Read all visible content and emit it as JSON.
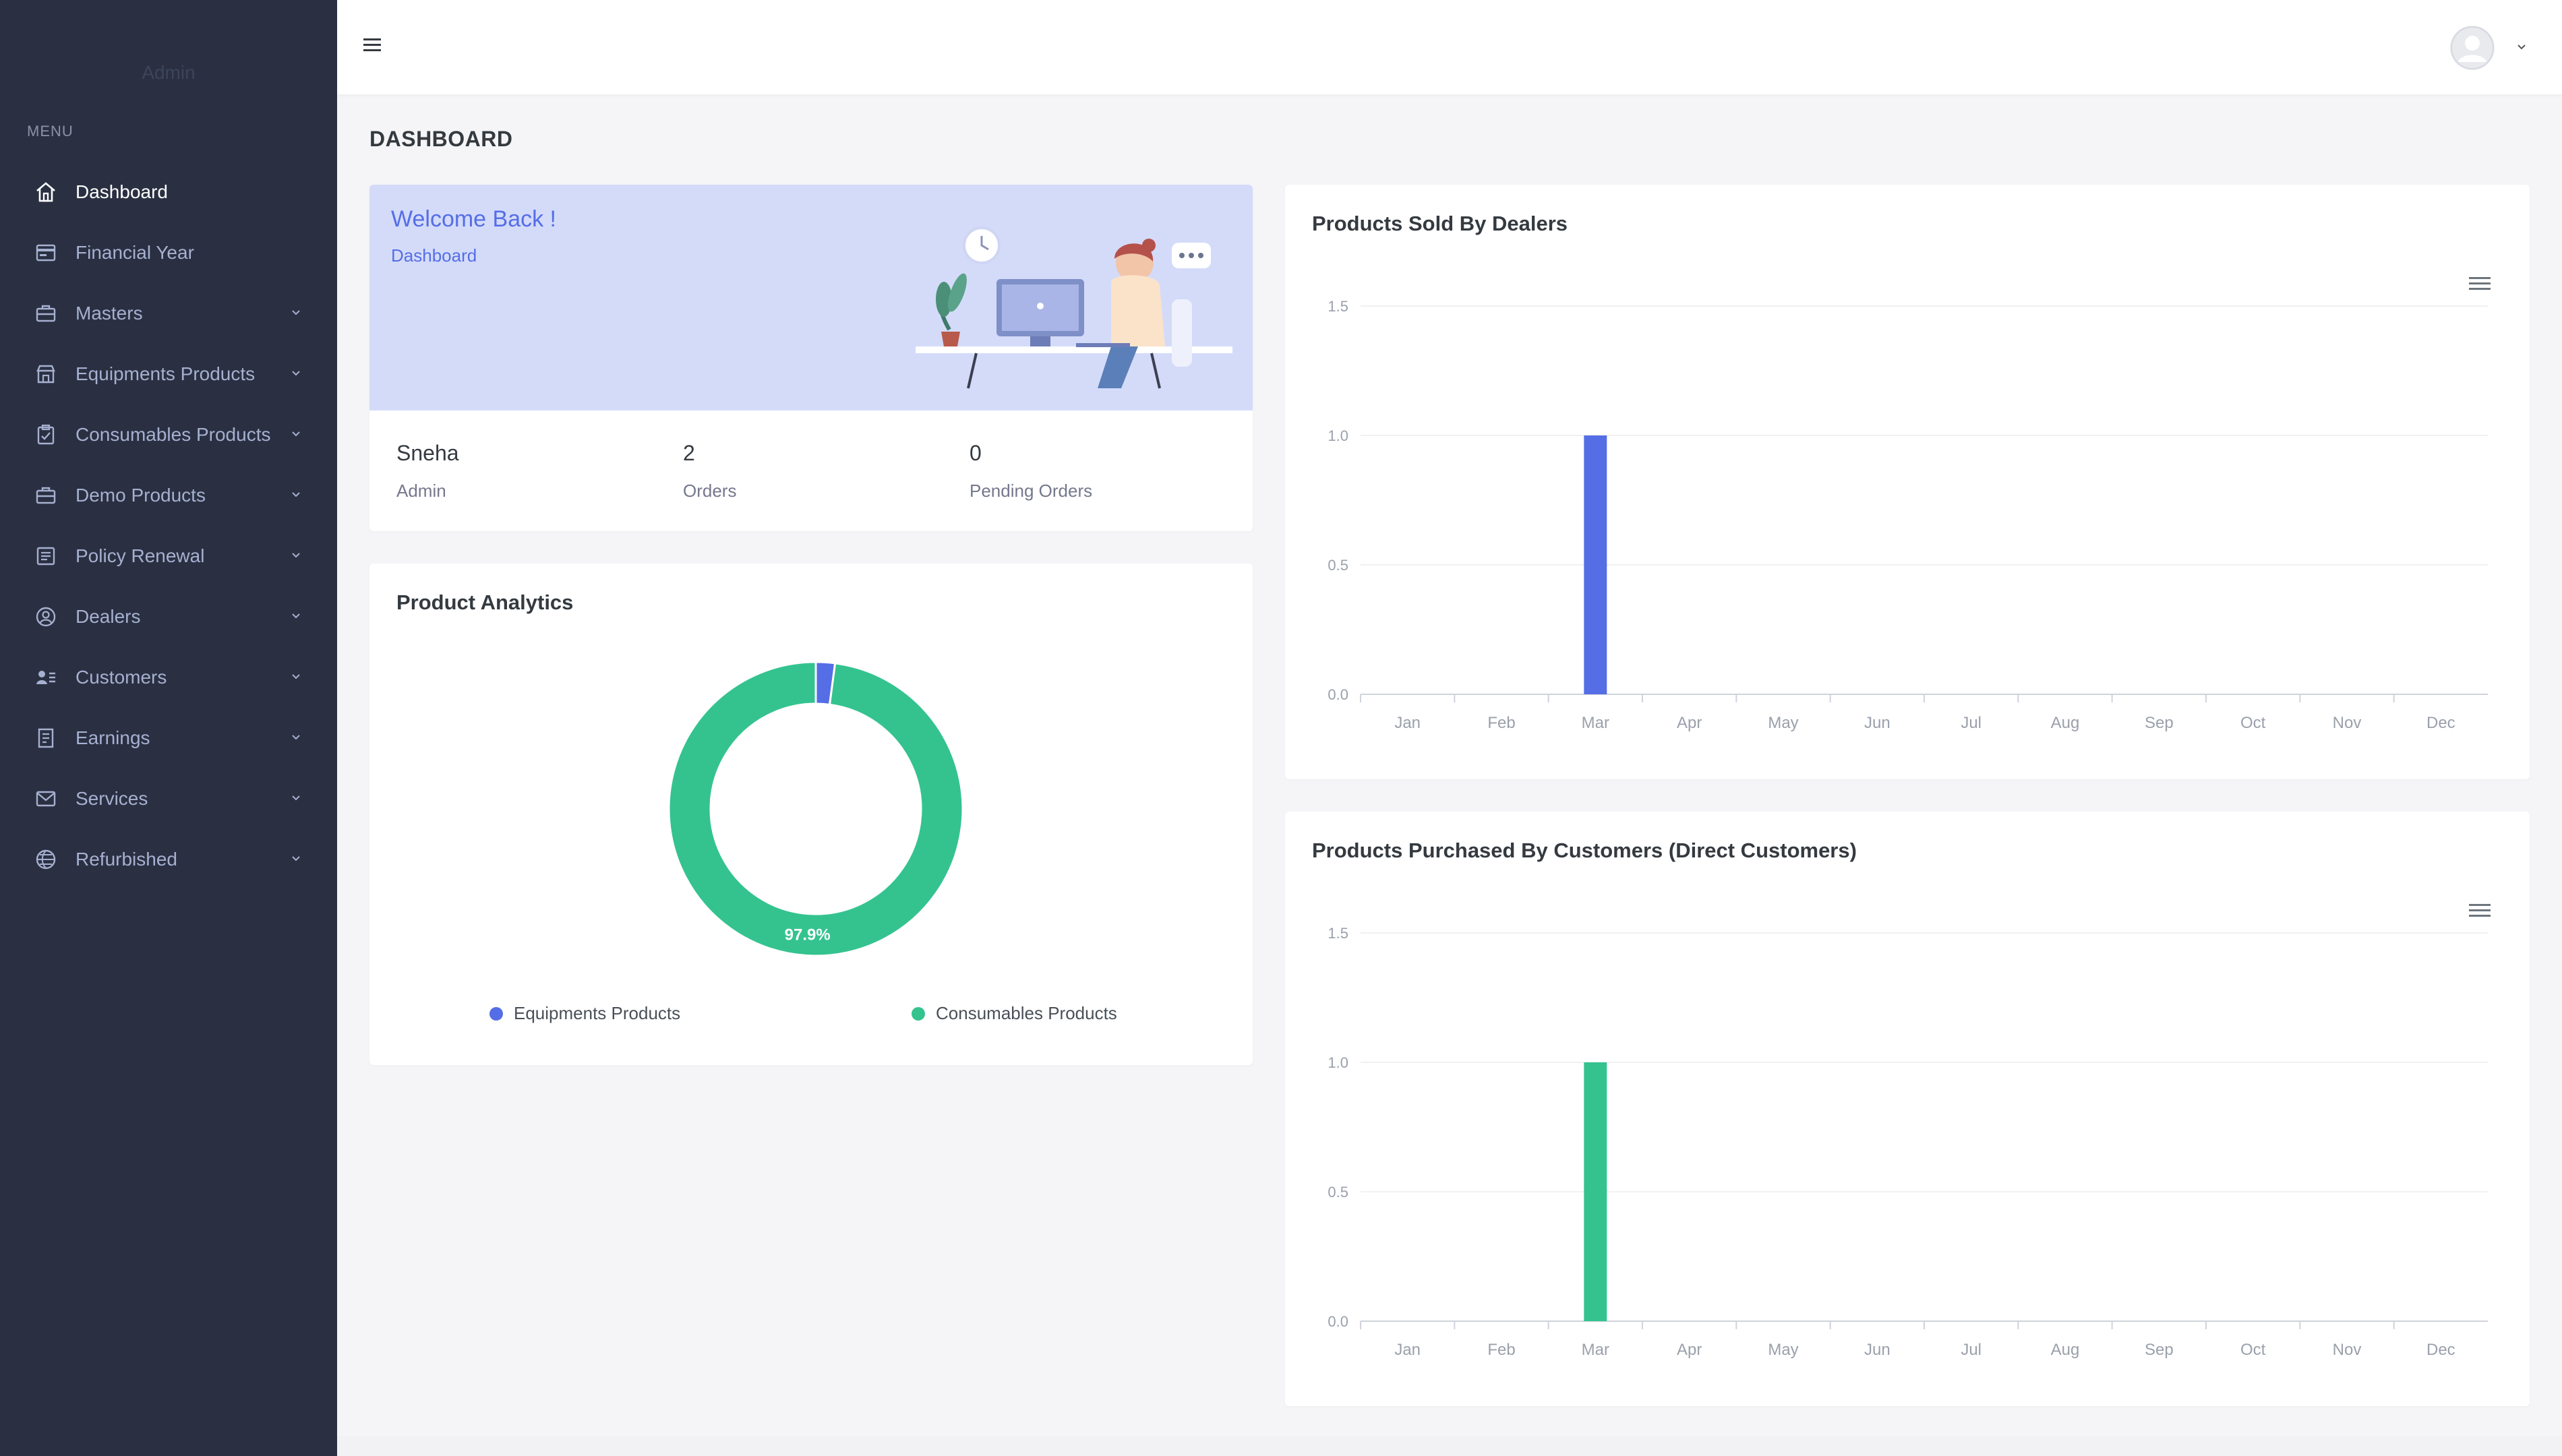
{
  "sidebar": {
    "brand": "Admin",
    "menu_title": "MENU",
    "items": [
      {
        "label": "Dashboard",
        "icon": "home-icon",
        "active": true,
        "expandable": false
      },
      {
        "label": "Financial Year",
        "icon": "calendar-card-icon",
        "active": false,
        "expandable": false
      },
      {
        "label": "Masters",
        "icon": "briefcase-icon",
        "active": false,
        "expandable": true
      },
      {
        "label": "Equipments Products",
        "icon": "store-icon",
        "active": false,
        "expandable": true
      },
      {
        "label": "Consumables Products",
        "icon": "clipboard-check-icon",
        "active": false,
        "expandable": true
      },
      {
        "label": "Demo Products",
        "icon": "briefcase-icon",
        "active": false,
        "expandable": true
      },
      {
        "label": "Policy Renewal",
        "icon": "document-icon",
        "active": false,
        "expandable": true
      },
      {
        "label": "Dealers",
        "icon": "user-circle-icon",
        "active": false,
        "expandable": true
      },
      {
        "label": "Customers",
        "icon": "user-list-icon",
        "active": false,
        "expandable": true
      },
      {
        "label": "Earnings",
        "icon": "receipt-icon",
        "active": false,
        "expandable": true
      },
      {
        "label": "Services",
        "icon": "mail-icon",
        "active": false,
        "expandable": true
      },
      {
        "label": "Refurbished",
        "icon": "globe-icon",
        "active": false,
        "expandable": true
      }
    ]
  },
  "header": {
    "page_title": "DASHBOARD"
  },
  "welcome": {
    "title": "Welcome Back !",
    "subtitle": "Dashboard",
    "name": "Sneha",
    "role": "Admin",
    "orders_value": "2",
    "orders_label": "Orders",
    "pending_value": "0",
    "pending_label": "Pending Orders"
  },
  "analytics": {
    "title": "Product Analytics",
    "legend": [
      {
        "label": "Equipments Products",
        "color": "#556ee6"
      },
      {
        "label": "Consumables Products",
        "color": "#34c38f"
      }
    ]
  },
  "charts": {
    "dealers_title": "Products Sold By Dealers",
    "customers_title": "Products Purchased By Customers (Direct Customers)"
  },
  "chart_data": [
    {
      "type": "pie",
      "title": "Product Analytics",
      "categories": [
        "Equipments Products",
        "Consumables Products"
      ],
      "values": [
        2.1,
        97.9
      ],
      "data_labels": [
        "",
        "97.9%"
      ],
      "colors": [
        "#556ee6",
        "#34c38f"
      ],
      "donut": true,
      "legend": "bottom"
    },
    {
      "type": "bar",
      "title": "Products Sold By Dealers",
      "categories": [
        "Jan",
        "Feb",
        "Mar",
        "Apr",
        "May",
        "Jun",
        "Jul",
        "Aug",
        "Sep",
        "Oct",
        "Nov",
        "Dec"
      ],
      "values": [
        0,
        0,
        1,
        0,
        0,
        0,
        0,
        0,
        0,
        0,
        0,
        0
      ],
      "ylim": [
        0,
        1.5
      ],
      "yticks": [
        "0.0",
        "0.5",
        "1.0",
        "1.5"
      ],
      "color": "#556ee6",
      "grid": true
    },
    {
      "type": "bar",
      "title": "Products Purchased By Customers (Direct Customers)",
      "categories": [
        "Jan",
        "Feb",
        "Mar",
        "Apr",
        "May",
        "Jun",
        "Jul",
        "Aug",
        "Sep",
        "Oct",
        "Nov",
        "Dec"
      ],
      "values": [
        0,
        0,
        1,
        0,
        0,
        0,
        0,
        0,
        0,
        0,
        0,
        0
      ],
      "ylim": [
        0,
        1.5
      ],
      "yticks": [
        "0.0",
        "0.5",
        "1.0",
        "1.5"
      ],
      "color": "#34c38f",
      "grid": true
    }
  ]
}
